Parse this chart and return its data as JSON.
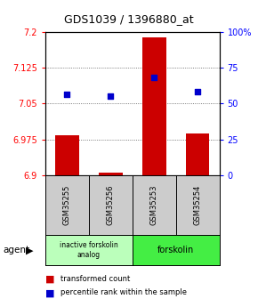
{
  "title": "GDS1039 / 1396880_at",
  "samples": [
    "GSM35255",
    "GSM35256",
    "GSM35253",
    "GSM35254"
  ],
  "bar_values": [
    6.983,
    6.905,
    7.19,
    6.988
  ],
  "bar_base": 6.9,
  "dot_values": [
    7.07,
    7.065,
    7.105,
    7.075
  ],
  "ylim": [
    6.9,
    7.2
  ],
  "y_left_ticks": [
    6.9,
    6.975,
    7.05,
    7.125,
    7.2
  ],
  "y_right_ticks": [
    0,
    25,
    50,
    75,
    100
  ],
  "bar_color": "#cc0000",
  "dot_color": "#0000cc",
  "groups": [
    {
      "label": "inactive forskolin\nanalog",
      "color": "#bbffbb"
    },
    {
      "label": "forskolin",
      "color": "#44ee44"
    }
  ],
  "agent_label": "agent",
  "legend_bar_label": "transformed count",
  "legend_dot_label": "percentile rank within the sample",
  "sample_box_color": "#cccccc",
  "plot_bg": "#ffffff"
}
